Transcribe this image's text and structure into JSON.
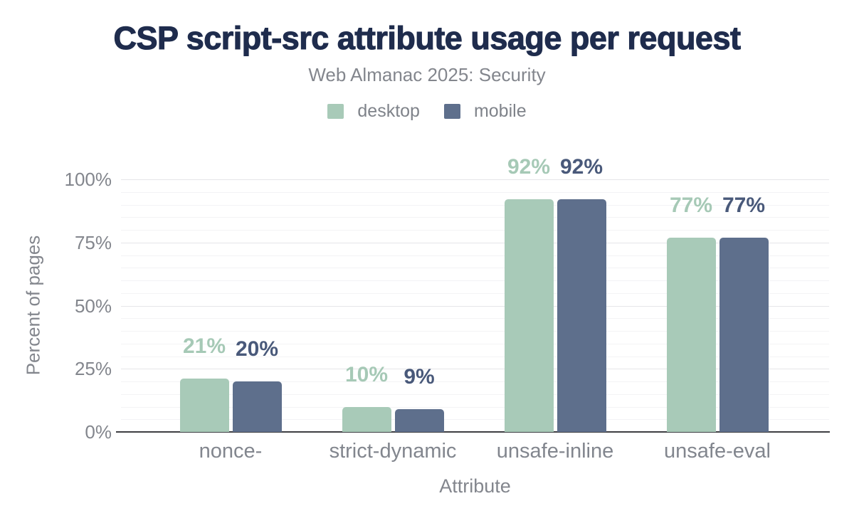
{
  "title": "CSP script-src attribute usage per request",
  "subtitle": "Web Almanac 2025: Security",
  "chart_data": {
    "type": "bar",
    "title": "CSP script-src attribute usage per request",
    "subtitle": "Web Almanac 2025: Security",
    "categories": [
      "nonce-",
      "strict-dynamic",
      "unsafe-inline",
      "unsafe-eval"
    ],
    "series": [
      {
        "name": "desktop",
        "color": "#a8cab8",
        "label_color": "#a6c9b6",
        "values": [
          21,
          10,
          92,
          77
        ],
        "labels": [
          "21%",
          "10%",
          "92%",
          "77%"
        ]
      },
      {
        "name": "mobile",
        "color": "#5e6f8c",
        "label_color": "#49597a",
        "values": [
          20,
          9,
          92,
          77
        ],
        "labels": [
          "20%",
          "9%",
          "92%",
          "77%"
        ]
      }
    ],
    "xlabel": "Attribute",
    "ylabel": "Percent of pages",
    "ylim": [
      0,
      100
    ],
    "yticks": [
      "0%",
      "25%",
      "50%",
      "75%",
      "100%"
    ],
    "ytick_values": [
      0,
      25,
      50,
      75,
      100
    ],
    "grid": "horizontal, minor every 5%, major every 25%",
    "legend_position": "top",
    "value_label_format": "percent"
  }
}
